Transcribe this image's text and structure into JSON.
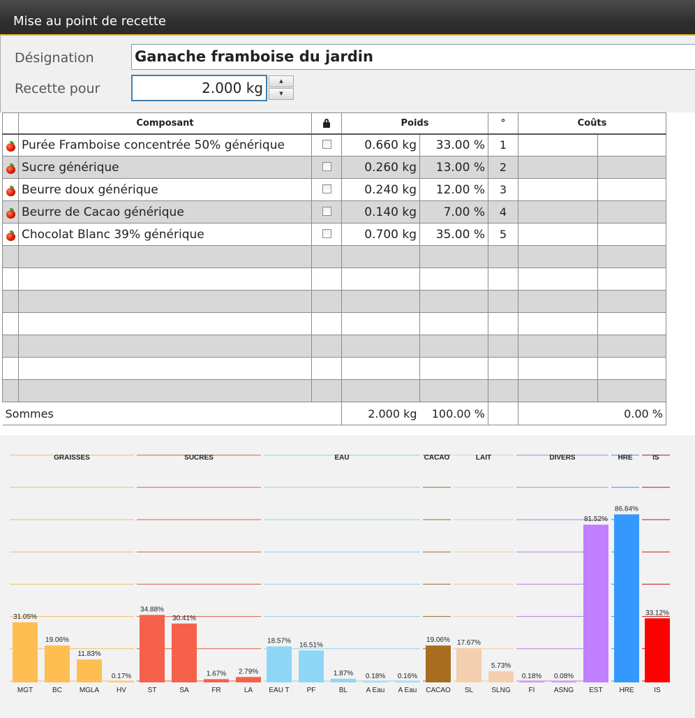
{
  "window": {
    "title": "Mise au point de recette"
  },
  "form": {
    "designation_label": "Désignation",
    "designation_value": "Ganache framboise du jardin",
    "recette_label": "Recette pour",
    "recette_value": "2.000 kg"
  },
  "grid": {
    "headers": {
      "composant": "Composant",
      "poids": "Poids",
      "rank": "°",
      "couts": "Coûts"
    },
    "rows": [
      {
        "name": "Purée Framboise concentrée 50% générique",
        "weight": "0.660 kg",
        "percent": "33.00 %",
        "rank": "1"
      },
      {
        "name": "Sucre générique",
        "weight": "0.260 kg",
        "percent": "13.00 %",
        "rank": "2"
      },
      {
        "name": "Beurre doux générique",
        "weight": "0.240 kg",
        "percent": "12.00 %",
        "rank": "3"
      },
      {
        "name": "Beurre de Cacao générique",
        "weight": "0.140 kg",
        "percent": "7.00 %",
        "rank": "4"
      },
      {
        "name": "Chocolat Blanc 39% générique",
        "weight": "0.700 kg",
        "percent": "35.00 %",
        "rank": "5"
      }
    ],
    "sums": {
      "label": "Sommes",
      "weight": "2.000 kg",
      "percent": "100.00 %",
      "cost": "0.00 %"
    }
  },
  "chart_data": {
    "type": "bar",
    "ylim": [
      0,
      100
    ],
    "grid": true,
    "groups": [
      {
        "title": "GRAISSES",
        "color": "#ffbe52",
        "line_color": "#f4b968",
        "bars": [
          {
            "label": "MGT",
            "value": 31.05,
            "text": "31.05%"
          },
          {
            "label": "BC",
            "value": 19.06,
            "text": "19.06%"
          },
          {
            "label": "MGLA",
            "value": 11.83,
            "text": "11.83%"
          },
          {
            "label": "HV",
            "value": 0.17,
            "text": "0.17%"
          }
        ]
      },
      {
        "title": "SUCRES",
        "color": "#f5614a",
        "line_color": "#d9603c",
        "bars": [
          {
            "label": "ST",
            "value": 34.88,
            "text": "34.88%"
          },
          {
            "label": "SA",
            "value": 30.41,
            "text": "30.41%"
          },
          {
            "label": "FR",
            "value": 1.67,
            "text": "1.67%"
          },
          {
            "label": "LA",
            "value": 2.79,
            "text": "2.79%"
          }
        ]
      },
      {
        "title": "EAU",
        "color": "#8ed6f6",
        "line_color": "#92d2ea",
        "bars": [
          {
            "label": "EAU T",
            "value": 18.57,
            "text": "18.57%"
          },
          {
            "label": "PF",
            "value": 16.51,
            "text": "16.51%"
          },
          {
            "label": "BL",
            "value": 1.87,
            "text": "1.87%"
          },
          {
            "label": "A Eau",
            "value": 0.18,
            "text": "0.18%"
          },
          {
            "label": "A Eau",
            "value": 0.16,
            "text": "0.16%"
          }
        ]
      },
      {
        "title": "CACAO",
        "color": "#a86d1e",
        "line_color": "#9c6a2a",
        "bars": [
          {
            "label": "CACAO",
            "value": 19.06,
            "text": "19.06%"
          }
        ]
      },
      {
        "title": "LAIT",
        "color": "#f3cfae",
        "line_color": "#efc6a4",
        "bars": [
          {
            "label": "SL",
            "value": 17.67,
            "text": "17.67%"
          },
          {
            "label": "SLNG",
            "value": 5.73,
            "text": "5.73%"
          }
        ]
      },
      {
        "title": "DIVERS",
        "color": "#c07fff",
        "line_color": "#b67ee0",
        "bars": [
          {
            "label": "FI",
            "value": 0.18,
            "text": "0.18%"
          },
          {
            "label": "ASNG",
            "value": 0.08,
            "text": "0.08%"
          },
          {
            "label": "EST",
            "value": 81.52,
            "text": "81.52%"
          }
        ]
      },
      {
        "title": "HRE",
        "color": "#3498ff",
        "line_color": "#3d8fe0",
        "bars": [
          {
            "label": "HRE",
            "value": 86.84,
            "text": "86.84%"
          }
        ]
      },
      {
        "title": "IS",
        "color": "#ff0000",
        "line_color": "#cc1111",
        "bars": [
          {
            "label": "IS",
            "value": 33.12,
            "text": "33.12%"
          }
        ]
      }
    ]
  }
}
